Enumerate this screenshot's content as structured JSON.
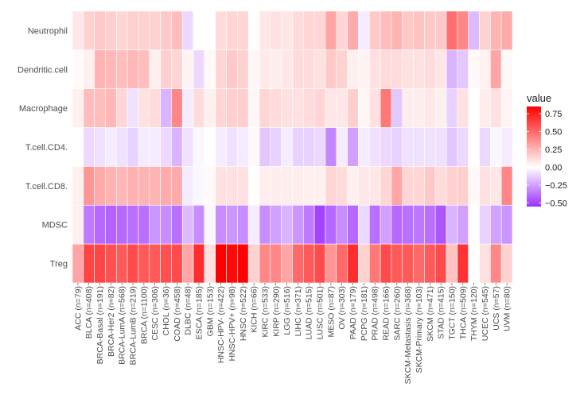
{
  "chart_data": {
    "type": "heatmap",
    "title": "",
    "xlabel": "",
    "ylabel": "",
    "legend_title": "value",
    "legend_position": "right",
    "color_low": "#9b30ff",
    "color_mid": "#ffffff",
    "color_high": "#ff0000",
    "value_range": [
      -0.55,
      0.85
    ],
    "legend_ticks": [
      {
        "value": 0.75,
        "label": "0.75"
      },
      {
        "value": 0.5,
        "label": "0.50"
      },
      {
        "value": 0.25,
        "label": "0.25"
      },
      {
        "value": 0.0,
        "label": "0.00"
      },
      {
        "value": -0.25,
        "label": "−0.25"
      },
      {
        "value": -0.5,
        "label": "−0.50"
      }
    ],
    "rows": [
      "Neutrophil",
      "Dendritic.cell",
      "Macrophage",
      "T.cell.CD4.",
      "T.cell.CD8.",
      "MDSC",
      "Treg"
    ],
    "columns": [
      "ACC (n=79)",
      "BLCA (n=408)",
      "BRCA-Basal (n=191)",
      "BRCA-Her2 (n=82)",
      "BRCA-LumA (n=568)",
      "BRCA-LumB (n=219)",
      "BRCA (n=1100)",
      "CESC (n=306)",
      "CHOL (n=36)",
      "COAD (n=458)",
      "DLBC (n=48)",
      "ESCA (n=185)",
      "GBM (n=153)",
      "HNSC-HPV- (n=422)",
      "HNSC-HPV+ (n=98)",
      "HNSC (n=522)",
      "KICH (n=66)",
      "KIRC (n=533)",
      "KIRP (n=290)",
      "LGG (n=516)",
      "LIHC (n=371)",
      "LUAD (n=515)",
      "LUSC (n=501)",
      "MESO (n=87)",
      "OV (n=303)",
      "PAAD (n=179)",
      "PCPG (n=181)",
      "PRAD (n=498)",
      "READ (n=166)",
      "SARC (n=260)",
      "SKCM-Metastasis (n=368)",
      "SKCM-Primary (n=103)",
      "SKCM (n=471)",
      "STAD (n=415)",
      "TGCT (n=150)",
      "THCA (n=509)",
      "THYM (n=120)",
      "UCEC (n=545)",
      "UCS (n=57)",
      "UVM (n=80)"
    ],
    "values": [
      [
        0.08,
        0.15,
        0.18,
        0.16,
        0.14,
        0.16,
        0.15,
        0.15,
        0.18,
        0.22,
        -0.1,
        0.0,
        0.0,
        0.12,
        0.14,
        0.14,
        0.0,
        0.08,
        0.1,
        0.08,
        0.12,
        0.14,
        0.14,
        0.3,
        0.14,
        0.28,
        -0.05,
        0.18,
        0.22,
        0.25,
        0.18,
        0.2,
        0.18,
        0.18,
        0.48,
        0.4,
        -0.18,
        0.15,
        0.25,
        0.28
      ],
      [
        0.02,
        0.05,
        0.25,
        0.24,
        0.22,
        0.24,
        0.22,
        0.05,
        0.16,
        0.14,
        0.04,
        -0.1,
        0.02,
        0.14,
        0.18,
        0.15,
        0.03,
        0.07,
        0.06,
        0.08,
        0.12,
        0.12,
        0.1,
        0.18,
        0.15,
        0.05,
        0.04,
        0.1,
        0.12,
        0.12,
        0.1,
        0.1,
        0.12,
        0.08,
        -0.2,
        -0.15,
        0.02,
        0.04,
        0.3,
        0.02
      ],
      [
        0.05,
        0.22,
        0.22,
        0.24,
        0.14,
        -0.08,
        0.1,
        0.12,
        -0.2,
        0.4,
        -0.05,
        0.12,
        0.05,
        0.14,
        0.16,
        0.16,
        0.03,
        0.14,
        0.12,
        0.1,
        0.1,
        0.12,
        0.14,
        0.08,
        0.08,
        0.16,
        0.03,
        0.1,
        0.45,
        -0.15,
        0.06,
        0.06,
        0.08,
        0.05,
        -0.12,
        0.1,
        0.0,
        0.06,
        0.1,
        0.04
      ],
      [
        0.0,
        -0.1,
        -0.08,
        -0.05,
        -0.08,
        -0.12,
        -0.05,
        -0.05,
        -0.1,
        -0.2,
        -0.08,
        -0.02,
        0.0,
        -0.05,
        -0.08,
        -0.05,
        0.02,
        -0.15,
        -0.12,
        -0.05,
        -0.12,
        -0.12,
        -0.1,
        -0.32,
        -0.05,
        -0.25,
        -0.05,
        -0.08,
        -0.1,
        -0.12,
        -0.08,
        -0.08,
        -0.08,
        -0.08,
        -0.15,
        -0.1,
        0.0,
        -0.1,
        -0.02,
        -0.05
      ],
      [
        0.05,
        0.35,
        0.28,
        0.25,
        0.24,
        0.26,
        0.25,
        0.25,
        0.28,
        0.28,
        -0.05,
        -0.02,
        0.02,
        0.1,
        0.1,
        0.1,
        0.0,
        0.06,
        0.06,
        0.06,
        0.06,
        0.05,
        0.05,
        0.14,
        0.12,
        0.05,
        0.08,
        0.08,
        0.14,
        0.3,
        0.14,
        0.14,
        0.18,
        0.12,
        0.16,
        0.16,
        0.02,
        0.1,
        0.08,
        0.4
      ],
      [
        0.05,
        -0.35,
        -0.4,
        -0.42,
        -0.4,
        -0.38,
        -0.38,
        -0.28,
        -0.3,
        -0.38,
        -0.18,
        -0.3,
        -0.02,
        -0.3,
        -0.28,
        -0.3,
        -0.05,
        -0.3,
        -0.25,
        -0.2,
        -0.28,
        -0.35,
        -0.5,
        -0.4,
        -0.3,
        -0.4,
        -0.1,
        -0.38,
        -0.25,
        -0.4,
        -0.38,
        -0.36,
        -0.38,
        -0.45,
        -0.2,
        -0.25,
        0.0,
        -0.12,
        -0.25,
        -0.28
      ],
      [
        0.3,
        0.62,
        0.62,
        0.58,
        0.55,
        0.6,
        0.55,
        0.55,
        0.58,
        0.6,
        0.3,
        0.7,
        0.1,
        0.88,
        0.82,
        0.84,
        0.15,
        0.4,
        0.4,
        0.3,
        0.5,
        0.55,
        0.6,
        0.35,
        0.5,
        0.7,
        0.15,
        0.45,
        0.6,
        0.55,
        0.55,
        0.5,
        0.55,
        0.6,
        0.2,
        0.68,
        0.0,
        0.1,
        0.4,
        0.15
      ]
    ]
  }
}
